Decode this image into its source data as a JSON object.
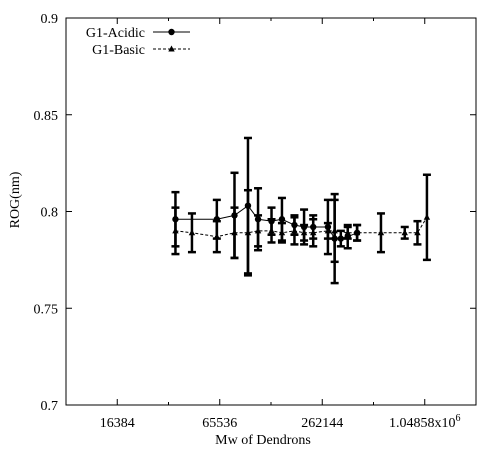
{
  "chart_data": {
    "type": "scatter",
    "title": "",
    "xlabel": "Mw of Dendrons",
    "ylabel": "ROG(nm)",
    "x_scale": "log2",
    "xlim": [
      8192,
      2097152
    ],
    "ylim": [
      0.7,
      0.9
    ],
    "x_ticks": [
      16384,
      65536,
      262144,
      1048576
    ],
    "x_tick_labels": [
      "16384",
      "65536",
      "262144",
      "1.04858x10"
    ],
    "x_tick_label_superscripts": [
      "",
      "",
      "",
      "6"
    ],
    "y_ticks": [
      0.7,
      0.75,
      0.8,
      0.85,
      0.9
    ],
    "y_tick_labels": [
      "0.7",
      "0.75",
      "0.8",
      "0.85",
      "0.9"
    ],
    "grid": false,
    "legend_position": "top-left",
    "series": [
      {
        "name": "G1-Acidic",
        "style": "solid",
        "marker": "circle",
        "color": "#000000",
        "points": [
          {
            "x": 36000,
            "y": 0.796,
            "err": 0.014
          },
          {
            "x": 63000,
            "y": 0.796,
            "err": 0.01
          },
          {
            "x": 80000,
            "y": 0.798,
            "err": 0.022
          },
          {
            "x": 96000,
            "y": 0.803,
            "err": 0.035
          },
          {
            "x": 110000,
            "y": 0.796,
            "err": 0.016
          },
          {
            "x": 132000,
            "y": 0.795,
            "err": 0.007
          },
          {
            "x": 152000,
            "y": 0.796,
            "err": 0.011
          },
          {
            "x": 180000,
            "y": 0.793,
            "err": 0.005
          },
          {
            "x": 205000,
            "y": 0.792,
            "err": 0.009
          },
          {
            "x": 232000,
            "y": 0.792,
            "err": 0.006
          },
          {
            "x": 283000,
            "y": 0.792,
            "err": 0.014
          },
          {
            "x": 310000,
            "y": 0.786,
            "err": 0.023
          },
          {
            "x": 337000,
            "y": 0.786,
            "err": 0.004
          },
          {
            "x": 370000,
            "y": 0.787,
            "err": 0.006
          },
          {
            "x": 420000,
            "y": 0.789,
            "err": 0.004
          }
        ]
      },
      {
        "name": "G1-Basic",
        "style": "dotted",
        "marker": "triangle",
        "color": "#000000",
        "points": [
          {
            "x": 36000,
            "y": 0.79,
            "err": 0.012
          },
          {
            "x": 45000,
            "y": 0.789,
            "err": 0.01
          },
          {
            "x": 63000,
            "y": 0.787,
            "err": 0.008
          },
          {
            "x": 80000,
            "y": 0.789,
            "err": 0.013
          },
          {
            "x": 96000,
            "y": 0.789,
            "err": 0.022
          },
          {
            "x": 110000,
            "y": 0.79,
            "err": 0.008
          },
          {
            "x": 132000,
            "y": 0.79,
            "err": 0.006
          },
          {
            "x": 152000,
            "y": 0.789,
            "err": 0.005
          },
          {
            "x": 180000,
            "y": 0.79,
            "err": 0.007
          },
          {
            "x": 205000,
            "y": 0.789,
            "err": 0.004
          },
          {
            "x": 232000,
            "y": 0.789,
            "err": 0.007
          },
          {
            "x": 283000,
            "y": 0.79,
            "err": 0.004
          },
          {
            "x": 310000,
            "y": 0.79,
            "err": 0.016
          },
          {
            "x": 370000,
            "y": 0.789,
            "err": 0.003
          },
          {
            "x": 420000,
            "y": 0.789,
            "err": 0.004
          },
          {
            "x": 580000,
            "y": 0.789,
            "err": 0.01
          },
          {
            "x": 800000,
            "y": 0.789,
            "err": 0.003
          },
          {
            "x": 950000,
            "y": 0.789,
            "err": 0.006
          },
          {
            "x": 1080000,
            "y": 0.797,
            "err": 0.022
          }
        ]
      }
    ]
  }
}
